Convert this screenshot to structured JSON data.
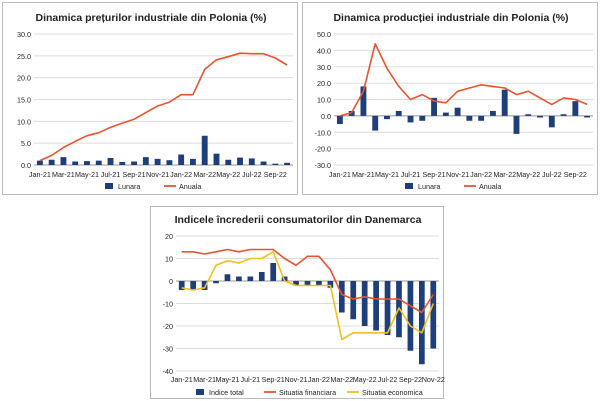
{
  "chart_data": [
    {
      "type": "bar+line",
      "title": "Dinamica prețurilor industriale din Polonia (%)",
      "months": [
        "Jan-21",
        "Feb-21",
        "Mar-21",
        "Apr-21",
        "May-21",
        "Jun-21",
        "Jul-21",
        "Aug-21",
        "Sep-21",
        "Oct-21",
        "Nov-21",
        "Dec-21",
        "Jan-22",
        "Feb-22",
        "Mar-22",
        "Apr-22",
        "May-22",
        "Jun-22",
        "Jul-22",
        "Aug-22",
        "Sep-22",
        "Oct-22"
      ],
      "tick_labels": [
        "Jan-21",
        "Mar-21",
        "May-21",
        "Jul-21",
        "Sep-21",
        "Nov-21",
        "Jan-22",
        "Mar-22",
        "May-22",
        "Jul-22",
        "Sep-22"
      ],
      "ylim": [
        0,
        30
      ],
      "yticks": [
        "0.0",
        "5.0",
        "10.0",
        "15.0",
        "20.0",
        "25.0",
        "30.0"
      ],
      "series": [
        {
          "name": "Lunara",
          "kind": "bar",
          "color": "#1f3f7a",
          "values": [
            1.0,
            1.2,
            1.8,
            0.8,
            0.9,
            1.0,
            1.6,
            0.7,
            0.8,
            1.8,
            1.4,
            1.1,
            2.4,
            1.4,
            6.7,
            2.6,
            1.2,
            1.7,
            1.5,
            0.8,
            0.3,
            0.5
          ]
        },
        {
          "name": "Anuala",
          "kind": "line",
          "color": "#e8542f",
          "values": [
            1.0,
            2.2,
            4.0,
            5.4,
            6.7,
            7.4,
            8.6,
            9.6,
            10.5,
            12.0,
            13.5,
            14.4,
            16.1,
            16.1,
            21.9,
            24.1,
            24.8,
            25.6,
            25.5,
            25.5,
            24.5,
            22.9
          ]
        }
      ]
    },
    {
      "type": "bar+line",
      "title": "Dinamica producției industriale din Polonia (%)",
      "months": [
        "Jan-21",
        "Feb-21",
        "Mar-21",
        "Apr-21",
        "May-21",
        "Jun-21",
        "Jul-21",
        "Aug-21",
        "Sep-21",
        "Oct-21",
        "Nov-21",
        "Dec-21",
        "Jan-22",
        "Feb-22",
        "Mar-22",
        "Apr-22",
        "May-22",
        "Jun-22",
        "Jul-22",
        "Aug-22",
        "Sep-22",
        "Oct-22"
      ],
      "tick_labels": [
        "Jan-21",
        "Mar-21",
        "May-21",
        "Jul-21",
        "Sep-21",
        "Nov-21",
        "Jan-22",
        "Mar-22",
        "May-22",
        "Jul-22",
        "Sep-22"
      ],
      "ylim": [
        -30,
        50
      ],
      "yticks": [
        "-30.0",
        "-20.0",
        "-10.0",
        "0.0",
        "10.0",
        "20.0",
        "30.0",
        "40.0",
        "50.0"
      ],
      "series": [
        {
          "name": "Lunara",
          "kind": "bar",
          "color": "#1f3f7a",
          "values": [
            -5,
            3,
            18,
            -9,
            -2,
            3,
            -4,
            -3,
            11,
            2,
            5,
            -3,
            -3,
            3,
            16,
            -11,
            1,
            -1,
            -7,
            1,
            9,
            -1
          ]
        },
        {
          "name": "Anuala",
          "kind": "line",
          "color": "#e8542f",
          "values": [
            0,
            2,
            15,
            44,
            29,
            18,
            10,
            13,
            9,
            8,
            15,
            17,
            19,
            18,
            17,
            13,
            15,
            11,
            7,
            11,
            10,
            7
          ]
        }
      ]
    },
    {
      "type": "bar+line",
      "title": "Indicele încrederii consumatorilor din Danemarca",
      "months": [
        "Jan-21",
        "Feb-21",
        "Mar-21",
        "Apr-21",
        "May-21",
        "Jun-21",
        "Jul-21",
        "Aug-21",
        "Sep-21",
        "Oct-21",
        "Nov-21",
        "Dec-21",
        "Jan-22",
        "Feb-22",
        "Mar-22",
        "Apr-22",
        "May-22",
        "Jun-22",
        "Jul-22",
        "Aug-22",
        "Sep-22",
        "Oct-22",
        "Nov-22"
      ],
      "tick_labels": [
        "Jan-21",
        "Mar-21",
        "May-21",
        "Jul-21",
        "Sep-21",
        "Nov-21",
        "Jan-22",
        "Mar-22",
        "May-22",
        "Jul-22",
        "Sep-22",
        "Nov-22"
      ],
      "ylim": [
        -40,
        20
      ],
      "yticks": [
        "-40",
        "-30",
        "-20",
        "-10",
        "0",
        "10",
        "20"
      ],
      "series": [
        {
          "name": "Indice total",
          "kind": "bar",
          "color": "#1f3f7a",
          "values": [
            -4,
            -4,
            -4,
            -1,
            3,
            2,
            2,
            4,
            8,
            2,
            -2,
            -2,
            -2,
            -3,
            -14,
            -17,
            -20,
            -22,
            -24,
            -25,
            -31,
            -37,
            -30
          ]
        },
        {
          "name": "Situatia financiara",
          "kind": "line",
          "color": "#e8542f",
          "values": [
            13,
            13,
            12,
            13,
            14,
            13,
            14,
            14,
            14,
            10,
            7,
            11,
            11,
            5,
            -6,
            -8,
            -7,
            -8,
            -8,
            -8,
            -11,
            -14,
            -6
          ]
        },
        {
          "name": "Situatia economica",
          "kind": "line",
          "color": "#f0c01e",
          "values": [
            -3,
            -4,
            -3,
            7,
            9,
            8,
            10,
            10,
            13,
            0,
            -2,
            -2,
            -2,
            -2,
            -26,
            -23,
            -23,
            -23,
            -23,
            -12,
            -20,
            -23,
            -10
          ]
        }
      ]
    }
  ]
}
